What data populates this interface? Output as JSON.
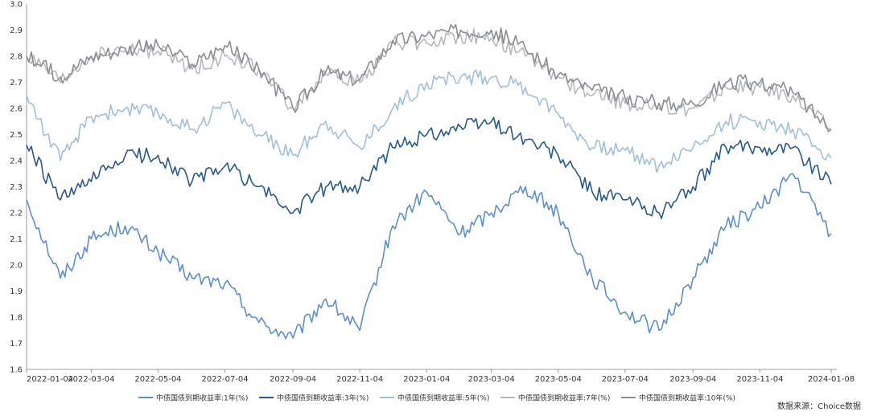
{
  "chart_data": {
    "type": "line",
    "title": "",
    "xlabel": "",
    "ylabel": "",
    "ylim": [
      1.6,
      3.0
    ],
    "y_ticks": [
      "1.6",
      "1.7",
      "1.8",
      "1.9",
      "2.0",
      "2.1",
      "2.2",
      "2.3",
      "2.4",
      "2.5",
      "2.6",
      "2.7",
      "2.8",
      "2.9",
      "3.0"
    ],
    "x_ticks": [
      "2022-01-04",
      "2022-03-04",
      "2022-05-04",
      "2022-07-04",
      "2022-09-04",
      "2022-11-04",
      "2023-01-04",
      "2023-03-04",
      "2023-05-04",
      "2023-07-04",
      "2023-09-04",
      "2023-11-04",
      "2024-01-08"
    ],
    "grid": false,
    "legend_position": "bottom",
    "x": [
      "2022-01-04",
      "2022-02-04",
      "2022-03-04",
      "2022-04-04",
      "2022-05-04",
      "2022-06-04",
      "2022-07-04",
      "2022-08-04",
      "2022-09-04",
      "2022-10-04",
      "2022-11-04",
      "2022-12-04",
      "2023-01-04",
      "2023-02-04",
      "2023-03-04",
      "2023-04-04",
      "2023-05-04",
      "2023-06-04",
      "2023-07-04",
      "2023-08-04",
      "2023-09-04",
      "2023-10-04",
      "2023-11-04",
      "2023-12-04",
      "2024-01-08"
    ],
    "series": [
      {
        "name": "中债国债到期收益率:1年(%)",
        "color": "#5b8fd0",
        "values": [
          2.25,
          1.95,
          2.1,
          2.15,
          2.05,
          1.95,
          1.93,
          1.78,
          1.72,
          1.87,
          1.75,
          2.15,
          2.28,
          2.12,
          2.2,
          2.3,
          2.2,
          1.95,
          1.82,
          1.75,
          1.95,
          2.15,
          2.22,
          2.35,
          2.12
        ]
      },
      {
        "name": "中债国债到期收益率:3年(%)",
        "color": "#26598f",
        "values": [
          2.46,
          2.25,
          2.32,
          2.42,
          2.42,
          2.32,
          2.38,
          2.3,
          2.2,
          2.3,
          2.3,
          2.45,
          2.5,
          2.53,
          2.55,
          2.48,
          2.42,
          2.28,
          2.25,
          2.2,
          2.3,
          2.45,
          2.45,
          2.45,
          2.31
        ]
      },
      {
        "name": "中债国债到期收益率:5年(%)",
        "color": "#9fbfde",
        "values": [
          2.65,
          2.4,
          2.57,
          2.6,
          2.58,
          2.52,
          2.62,
          2.5,
          2.42,
          2.55,
          2.45,
          2.6,
          2.7,
          2.72,
          2.72,
          2.68,
          2.58,
          2.45,
          2.44,
          2.38,
          2.45,
          2.55,
          2.55,
          2.52,
          2.41
        ]
      },
      {
        "name": "中债国债到期收益率:7年(%)",
        "color": "#b5b9bf",
        "values": [
          2.8,
          2.7,
          2.8,
          2.82,
          2.82,
          2.75,
          2.8,
          2.75,
          2.6,
          2.73,
          2.7,
          2.85,
          2.85,
          2.88,
          2.87,
          2.8,
          2.72,
          2.65,
          2.62,
          2.6,
          2.6,
          2.68,
          2.68,
          2.65,
          2.52
        ]
      },
      {
        "name": "中债国债到期收益率:10年(%)",
        "color": "#8a8d94",
        "values": [
          2.8,
          2.72,
          2.8,
          2.83,
          2.84,
          2.77,
          2.84,
          2.75,
          2.6,
          2.74,
          2.71,
          2.86,
          2.88,
          2.9,
          2.9,
          2.83,
          2.73,
          2.67,
          2.64,
          2.62,
          2.62,
          2.7,
          2.7,
          2.66,
          2.52
        ]
      }
    ]
  },
  "source_label": "数据来源：Choice数据"
}
